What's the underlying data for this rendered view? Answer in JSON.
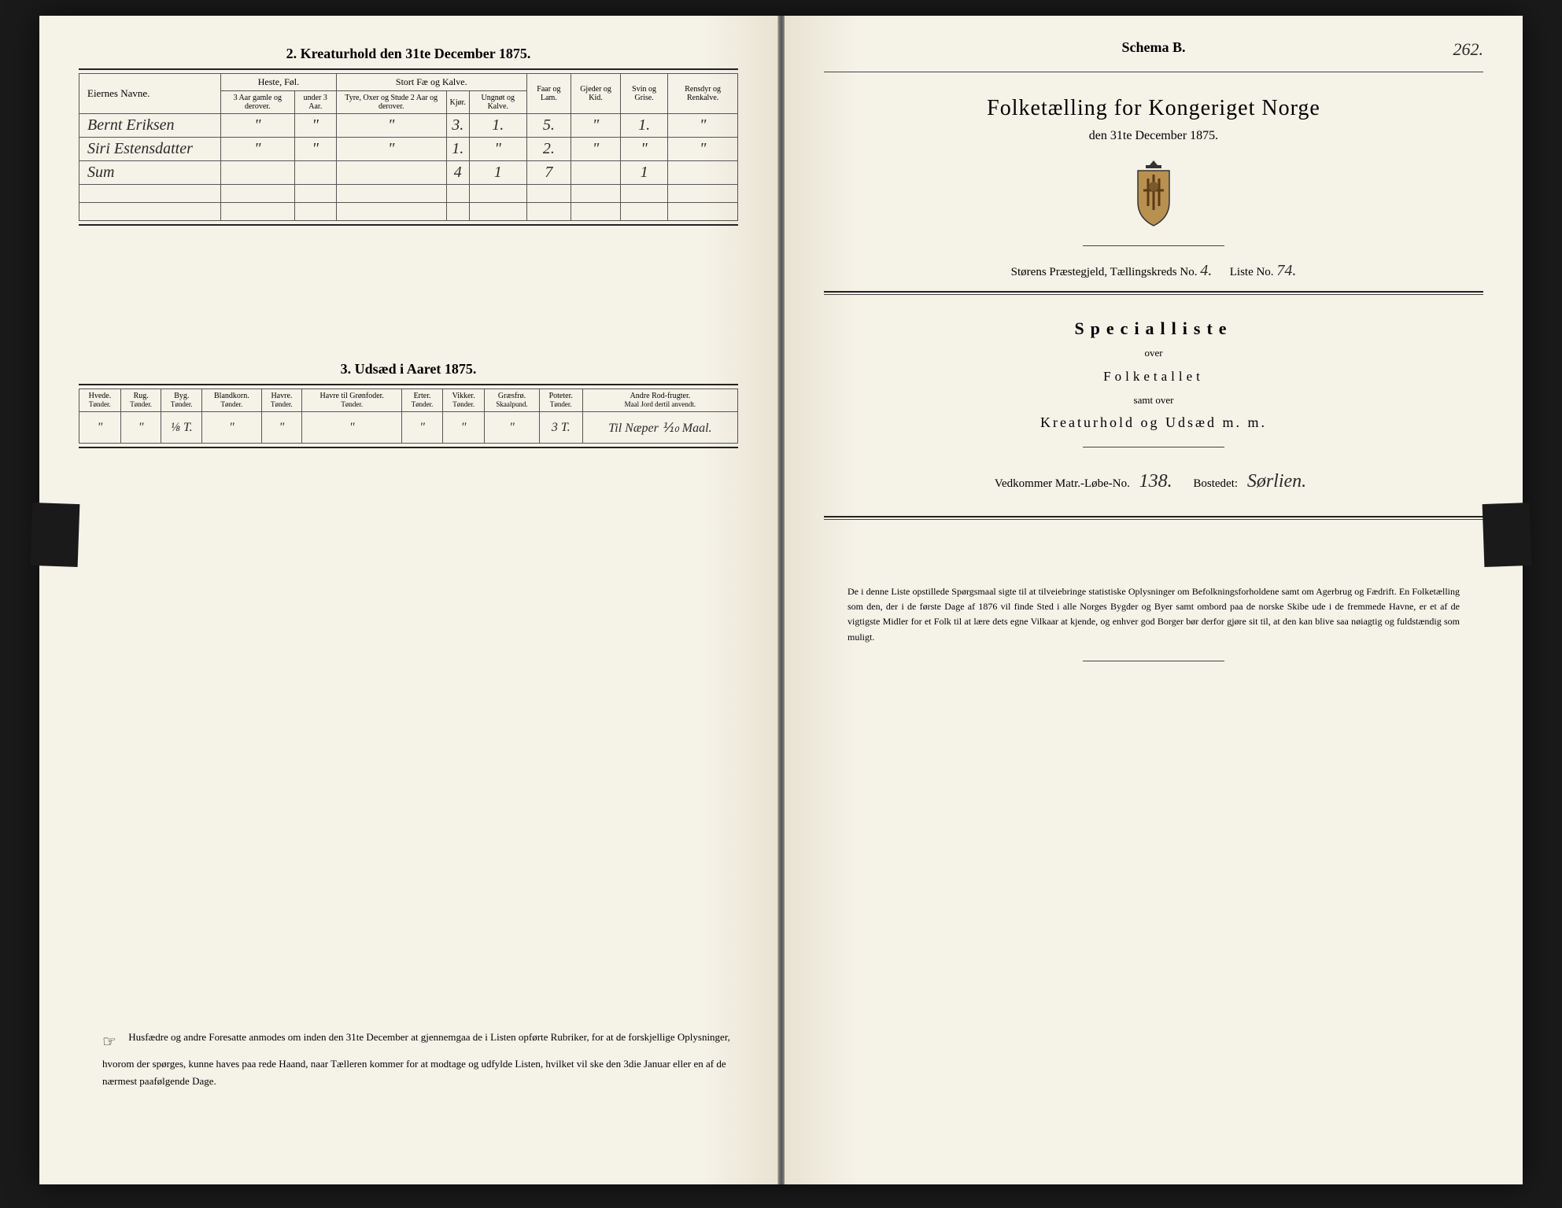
{
  "page_number": "262.",
  "left_page": {
    "section2": {
      "title": "2.  Kreaturhold den 31te December 1875.",
      "headers": {
        "owners": "Eiernes Navne.",
        "horses_group": "Heste, Føl.",
        "horses_old": "3 Aar gamle og derover.",
        "horses_young": "under 3 Aar.",
        "cattle_group": "Stort Fæ og Kalve.",
        "cattle_bulls": "Tyre, Oxer og Stude 2 Aar og derover.",
        "cattle_cows": "Kjør.",
        "cattle_young": "Ungnøt og Kalve.",
        "sheep": "Faar og Lam.",
        "goats": "Gjeder og Kid.",
        "pigs": "Svin og Grise.",
        "reindeer": "Rensdyr og Renkalve."
      },
      "rows": [
        {
          "name": "Bernt Eriksen",
          "h1": "\"",
          "h2": "\"",
          "c1": "\"",
          "c2": "3.",
          "c3": "1.",
          "sheep": "5.",
          "goats": "\"",
          "pigs": "1.",
          "rein": "\""
        },
        {
          "name": "Siri Estensdatter",
          "h1": "\"",
          "h2": "\"",
          "c1": "\"",
          "c2": "1.",
          "c3": "\"",
          "sheep": "2.",
          "goats": "\"",
          "pigs": "\"",
          "rein": "\""
        },
        {
          "name": "Sum",
          "h1": "",
          "h2": "",
          "c1": "",
          "c2": "4",
          "c3": "1",
          "sheep": "7",
          "goats": "",
          "pigs": "1",
          "rein": ""
        }
      ]
    },
    "section3": {
      "title": "3.  Udsæd i Aaret 1875.",
      "headers": [
        "Hvede.",
        "Rug.",
        "Byg.",
        "Blandkorn.",
        "Havre.",
        "Havre til Grønfoder.",
        "Erter.",
        "Vikker.",
        "Græsfrø.",
        "Poteter.",
        "Andre Rod-frugter."
      ],
      "units": [
        "Tønder.",
        "Tønder.",
        "Tønder.",
        "Tønder.",
        "Tønder.",
        "Tønder.",
        "Tønder.",
        "Tønder.",
        "Skaalpund.",
        "Tønder.",
        "Maal Jord dertil anvendt."
      ],
      "values": [
        "\"",
        "\"",
        "⅛ T.",
        "\"",
        "\"",
        "\"",
        "\"",
        "\"",
        "\"",
        "3 T.",
        "Til Næper ⅒ Maal."
      ]
    },
    "footer": {
      "text": "Husfædre og andre Foresatte anmodes om inden den 31te December at gjennemgaa de i Listen opførte Rubriker, for at de forskjellige Oplysninger, hvorom der spørges, kunne haves paa rede Haand, naar Tælleren kommer for at modtage og udfylde Listen, hvilket vil ske den 3die Januar eller en af de nærmest paafølgende Dage."
    }
  },
  "right_page": {
    "schema": "Schema B.",
    "main_title": "Folketælling for Kongeriget Norge",
    "date": "den 31te December 1875.",
    "district_line_prefix": "Størens Præstegjeld,  Tællingskreds No.",
    "district_no": "4.",
    "list_label": "Liste No.",
    "list_no": "74.",
    "specialliste": "Specialliste",
    "over": "over",
    "folketallet": "Folketallet",
    "samt_over": "samt over",
    "kreatur": "Kreaturhold og Udsæd m. m.",
    "vedkommer_prefix": "Vedkommer Matr.-Løbe-No.",
    "matr_no": "138.",
    "bosted_label": "Bostedet:",
    "bosted": "Sørlien.",
    "footer": "De i denne Liste opstillede Spørgsmaal sigte til at tilveiebringe statistiske Oplysninger om Befolkningsforholdene samt om Agerbrug og Fædrift.  En Folketælling som den, der i de første Dage af 1876 vil finde Sted i alle Norges Bygder og Byer samt ombord paa de norske Skibe ude i de fremmede Havne, er et af de vigtigste Midler for et Folk til at lære dets egne Vilkaar at kjende, og enhver god Borger bør derfor gjøre sit til, at den kan blive saa nøiagtig og fuldstændig som muligt."
  },
  "colors": {
    "paper": "#f5f2e8",
    "ink": "#222222",
    "background": "#1a1a1a"
  }
}
